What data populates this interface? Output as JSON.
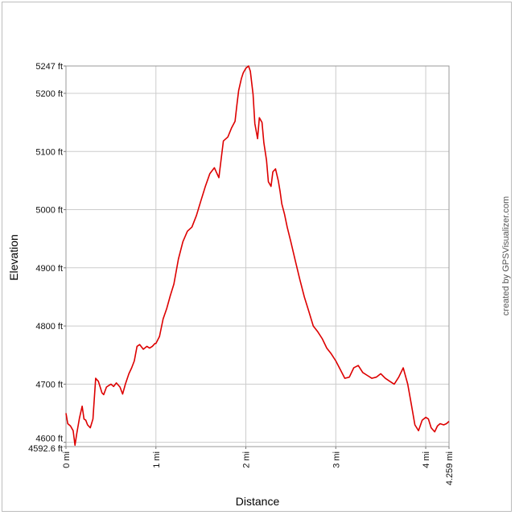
{
  "chart_data": {
    "type": "line",
    "xlabel": "Distance",
    "ylabel": "Elevation",
    "credit": "created by GPSVisualizer.com",
    "xlim": [
      0,
      4.259
    ],
    "ylim": [
      4592.6,
      5247
    ],
    "x_ticks": [
      {
        "value": 0,
        "label": "0 mi"
      },
      {
        "value": 1,
        "label": "1 mi"
      },
      {
        "value": 2,
        "label": "2 mi"
      },
      {
        "value": 3,
        "label": "3 mi"
      },
      {
        "value": 4,
        "label": "4 mi"
      },
      {
        "value": 4.259,
        "label": "4.259 mi"
      }
    ],
    "y_ticks": [
      {
        "value": 4592.6,
        "label": "4592.6 ft"
      },
      {
        "value": 4600,
        "label": "4600 ft"
      },
      {
        "value": 4700,
        "label": "4700 ft"
      },
      {
        "value": 4800,
        "label": "4800 ft"
      },
      {
        "value": 4900,
        "label": "4900 ft"
      },
      {
        "value": 5000,
        "label": "5000 ft"
      },
      {
        "value": 5100,
        "label": "5100 ft"
      },
      {
        "value": 5200,
        "label": "5200 ft"
      },
      {
        "value": 5247,
        "label": "5247 ft"
      }
    ],
    "grid": true,
    "line_color": "#dd0000",
    "series": [
      {
        "x": [
          0,
          0.02,
          0.05,
          0.08,
          0.1,
          0.12,
          0.15,
          0.18,
          0.2,
          0.22,
          0.24,
          0.27,
          0.3,
          0.33,
          0.36,
          0.38,
          0.4,
          0.42,
          0.45,
          0.48,
          0.5,
          0.53,
          0.56,
          0.6,
          0.63,
          0.66,
          0.7,
          0.73,
          0.76,
          0.79,
          0.82,
          0.86,
          0.9,
          0.93,
          0.96,
          0.99,
          1.0,
          1.04,
          1.08,
          1.12,
          1.16,
          1.2,
          1.25,
          1.3,
          1.35,
          1.4,
          1.45,
          1.5,
          1.55,
          1.6,
          1.65,
          1.7,
          1.75,
          1.8,
          1.84,
          1.88,
          1.9,
          1.92,
          1.95,
          1.97,
          2.0,
          2.03,
          2.05,
          2.08,
          2.1,
          2.13,
          2.15,
          2.18,
          2.2,
          2.23,
          2.25,
          2.28,
          2.3,
          2.33,
          2.36,
          2.38,
          2.4,
          2.43,
          2.46,
          2.5,
          2.55,
          2.6,
          2.65,
          2.7,
          2.75,
          2.8,
          2.85,
          2.9,
          2.95,
          3.0,
          3.05,
          3.1,
          3.15,
          3.2,
          3.25,
          3.3,
          3.35,
          3.4,
          3.45,
          3.5,
          3.55,
          3.6,
          3.65,
          3.7,
          3.75,
          3.8,
          3.84,
          3.88,
          3.92,
          3.96,
          4.0,
          4.03,
          4.06,
          4.1,
          4.13,
          4.16,
          4.2,
          4.23,
          4.259
        ],
        "y": [
          4650,
          4632,
          4628,
          4620,
          4595,
          4615,
          4642,
          4662,
          4640,
          4638,
          4630,
          4625,
          4640,
          4710,
          4705,
          4695,
          4685,
          4682,
          4695,
          4698,
          4700,
          4696,
          4702,
          4695,
          4683,
          4700,
          4718,
          4728,
          4740,
          4765,
          4768,
          4760,
          4765,
          4762,
          4765,
          4770,
          4770,
          4782,
          4812,
          4830,
          4852,
          4872,
          4915,
          4945,
          4963,
          4970,
          4990,
          5015,
          5040,
          5062,
          5072,
          5055,
          5118,
          5125,
          5140,
          5152,
          5180,
          5205,
          5225,
          5235,
          5243,
          5247,
          5238,
          5198,
          5148,
          5122,
          5158,
          5150,
          5115,
          5085,
          5048,
          5040,
          5065,
          5070,
          5050,
          5032,
          5010,
          4992,
          4970,
          4945,
          4912,
          4880,
          4850,
          4825,
          4800,
          4790,
          4778,
          4762,
          4752,
          4740,
          4725,
          4710,
          4712,
          4728,
          4732,
          4720,
          4715,
          4710,
          4712,
          4718,
          4710,
          4705,
          4700,
          4712,
          4728,
          4700,
          4665,
          4630,
          4620,
          4638,
          4643,
          4640,
          4625,
          4618,
          4628,
          4632,
          4630,
          4632,
          4636
        ]
      }
    ]
  }
}
